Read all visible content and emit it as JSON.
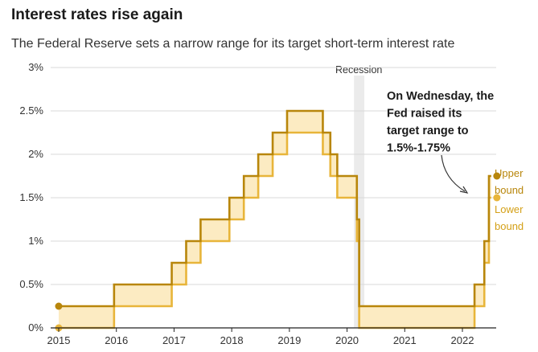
{
  "header": {
    "title": "Interest rates rise again",
    "subtitle": "The Federal Reserve sets a narrow range for its target short-term interest rate"
  },
  "colors": {
    "upper": "#b8860b",
    "lower": "#e8b53a",
    "band": "#fcebc2",
    "recession": "#ebebeb"
  },
  "chart_data": {
    "type": "line",
    "title": "Interest rates rise again",
    "subtitle": "The Federal Reserve sets a narrow range for its target short-term interest rate",
    "xlim": [
      2015,
      2022.9
    ],
    "ylim": [
      0,
      3
    ],
    "x_ticks": [
      {
        "value": 2015,
        "label": "2015"
      },
      {
        "value": 2016,
        "label": "2016"
      },
      {
        "value": 2017,
        "label": "2017"
      },
      {
        "value": 2018,
        "label": "2018"
      },
      {
        "value": 2019,
        "label": "2019"
      },
      {
        "value": 2020,
        "label": "2020"
      },
      {
        "value": 2021,
        "label": "2021"
      },
      {
        "value": 2022,
        "label": "2022"
      }
    ],
    "y_ticks": [
      {
        "value": 0,
        "label": "0%"
      },
      {
        "value": 0.5,
        "label": "0.5%"
      },
      {
        "value": 1,
        "label": "1%"
      },
      {
        "value": 1.5,
        "label": "1.5%"
      },
      {
        "value": 2,
        "label": "2%"
      },
      {
        "value": 2.5,
        "label": "2.5%"
      },
      {
        "value": 3,
        "label": "3%"
      }
    ],
    "grid": true,
    "recession": {
      "label": "Recession",
      "start": 2020.12,
      "end": 2020.3
    },
    "steps": [
      {
        "x": 2015.0,
        "lower": 0,
        "upper": 0.25
      },
      {
        "x": 2015.96,
        "lower": 0.25,
        "upper": 0.5
      },
      {
        "x": 2016.96,
        "lower": 0.5,
        "upper": 0.75
      },
      {
        "x": 2017.21,
        "lower": 0.75,
        "upper": 1.0
      },
      {
        "x": 2017.46,
        "lower": 1.0,
        "upper": 1.25
      },
      {
        "x": 2017.96,
        "lower": 1.25,
        "upper": 1.5
      },
      {
        "x": 2018.21,
        "lower": 1.5,
        "upper": 1.75
      },
      {
        "x": 2018.46,
        "lower": 1.75,
        "upper": 2.0
      },
      {
        "x": 2018.71,
        "lower": 2.0,
        "upper": 2.25
      },
      {
        "x": 2018.96,
        "lower": 2.25,
        "upper": 2.5
      },
      {
        "x": 2019.58,
        "lower": 2.0,
        "upper": 2.25
      },
      {
        "x": 2019.71,
        "lower": 1.75,
        "upper": 2.0
      },
      {
        "x": 2019.83,
        "lower": 1.5,
        "upper": 1.75
      },
      {
        "x": 2020.17,
        "lower": 1.0,
        "upper": 1.25
      },
      {
        "x": 2020.21,
        "lower": 0,
        "upper": 0.25
      },
      {
        "x": 2022.21,
        "lower": 0.25,
        "upper": 0.5
      },
      {
        "x": 2022.38,
        "lower": 0.75,
        "upper": 1.0
      },
      {
        "x": 2022.46,
        "lower": 1.5,
        "upper": 1.75
      }
    ],
    "x_end": 2022.5,
    "start_points": {
      "x": 2015.0,
      "lower": 0,
      "upper": 0.25
    },
    "end_points": {
      "x": 2022.5,
      "lower": 1.5,
      "upper": 1.75
    },
    "legend": {
      "upper": [
        "Upper",
        "bound"
      ],
      "lower": [
        "Lower",
        "bound"
      ]
    },
    "annotation": [
      "On Wednesday, the",
      "Fed raised its",
      "target range to",
      "1.5%-1.75%"
    ]
  }
}
